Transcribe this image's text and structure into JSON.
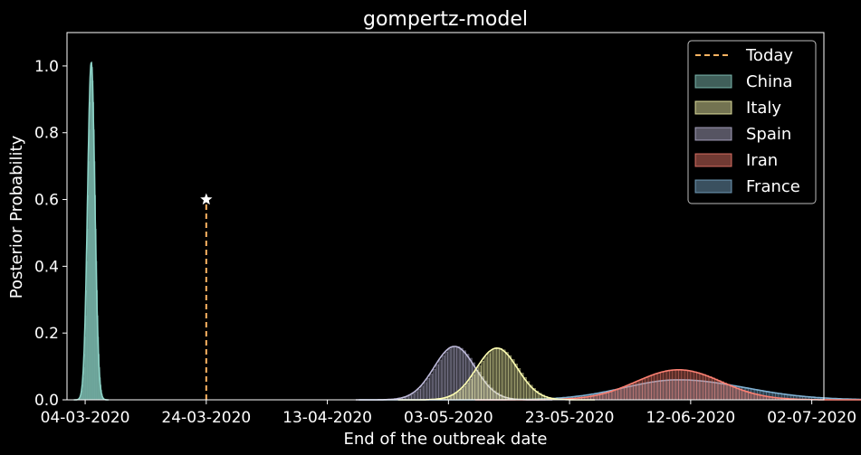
{
  "chart_data": {
    "type": "area",
    "title": "gompertz-model",
    "xlabel": "End of the outbreak date",
    "ylabel": "Posterior Probability",
    "ylim": [
      0,
      1.1
    ],
    "xlim": [
      "2020-03-01",
      "2020-07-04"
    ],
    "x_ticks": [
      {
        "date": "2020-03-04",
        "label": "04-03-2020"
      },
      {
        "date": "2020-03-24",
        "label": "24-03-2020"
      },
      {
        "date": "2020-04-13",
        "label": "13-04-2020"
      },
      {
        "date": "2020-05-03",
        "label": "03-05-2020"
      },
      {
        "date": "2020-05-23",
        "label": "23-05-2020"
      },
      {
        "date": "2020-06-12",
        "label": "12-06-2020"
      },
      {
        "date": "2020-07-02",
        "label": "02-07-2020"
      }
    ],
    "y_ticks": [
      {
        "value": 0.0,
        "label": "0.0"
      },
      {
        "value": 0.2,
        "label": "0.2"
      },
      {
        "value": 0.4,
        "label": "0.4"
      },
      {
        "value": 0.6,
        "label": "0.6"
      },
      {
        "value": 0.8,
        "label": "0.8"
      },
      {
        "value": 1.0,
        "label": "1.0"
      }
    ],
    "today": {
      "name": "Today",
      "date": "2020-03-24",
      "value": 0.6,
      "color": "#fdb462",
      "marker": "star"
    },
    "series": [
      {
        "name": "China",
        "peak_date": "2020-03-05",
        "peak_value": 1.01,
        "color": "#8dd3c7"
      },
      {
        "name": "Italy",
        "peak_date": "2020-05-11",
        "peak_value": 0.155,
        "color": "#ffffb3"
      },
      {
        "name": "Spain",
        "peak_date": "2020-05-04",
        "peak_value": 0.16,
        "color": "#bebada"
      },
      {
        "name": "Iran",
        "peak_date": "2020-06-10",
        "peak_value": 0.09,
        "color": "#fb8072"
      },
      {
        "name": "France",
        "peak_date": "2020-06-10",
        "peak_value": 0.06,
        "color": "#80b1d3"
      }
    ],
    "grid": false,
    "legend_position": "top-right",
    "background": "#000000",
    "text_color": "#ffffff"
  }
}
